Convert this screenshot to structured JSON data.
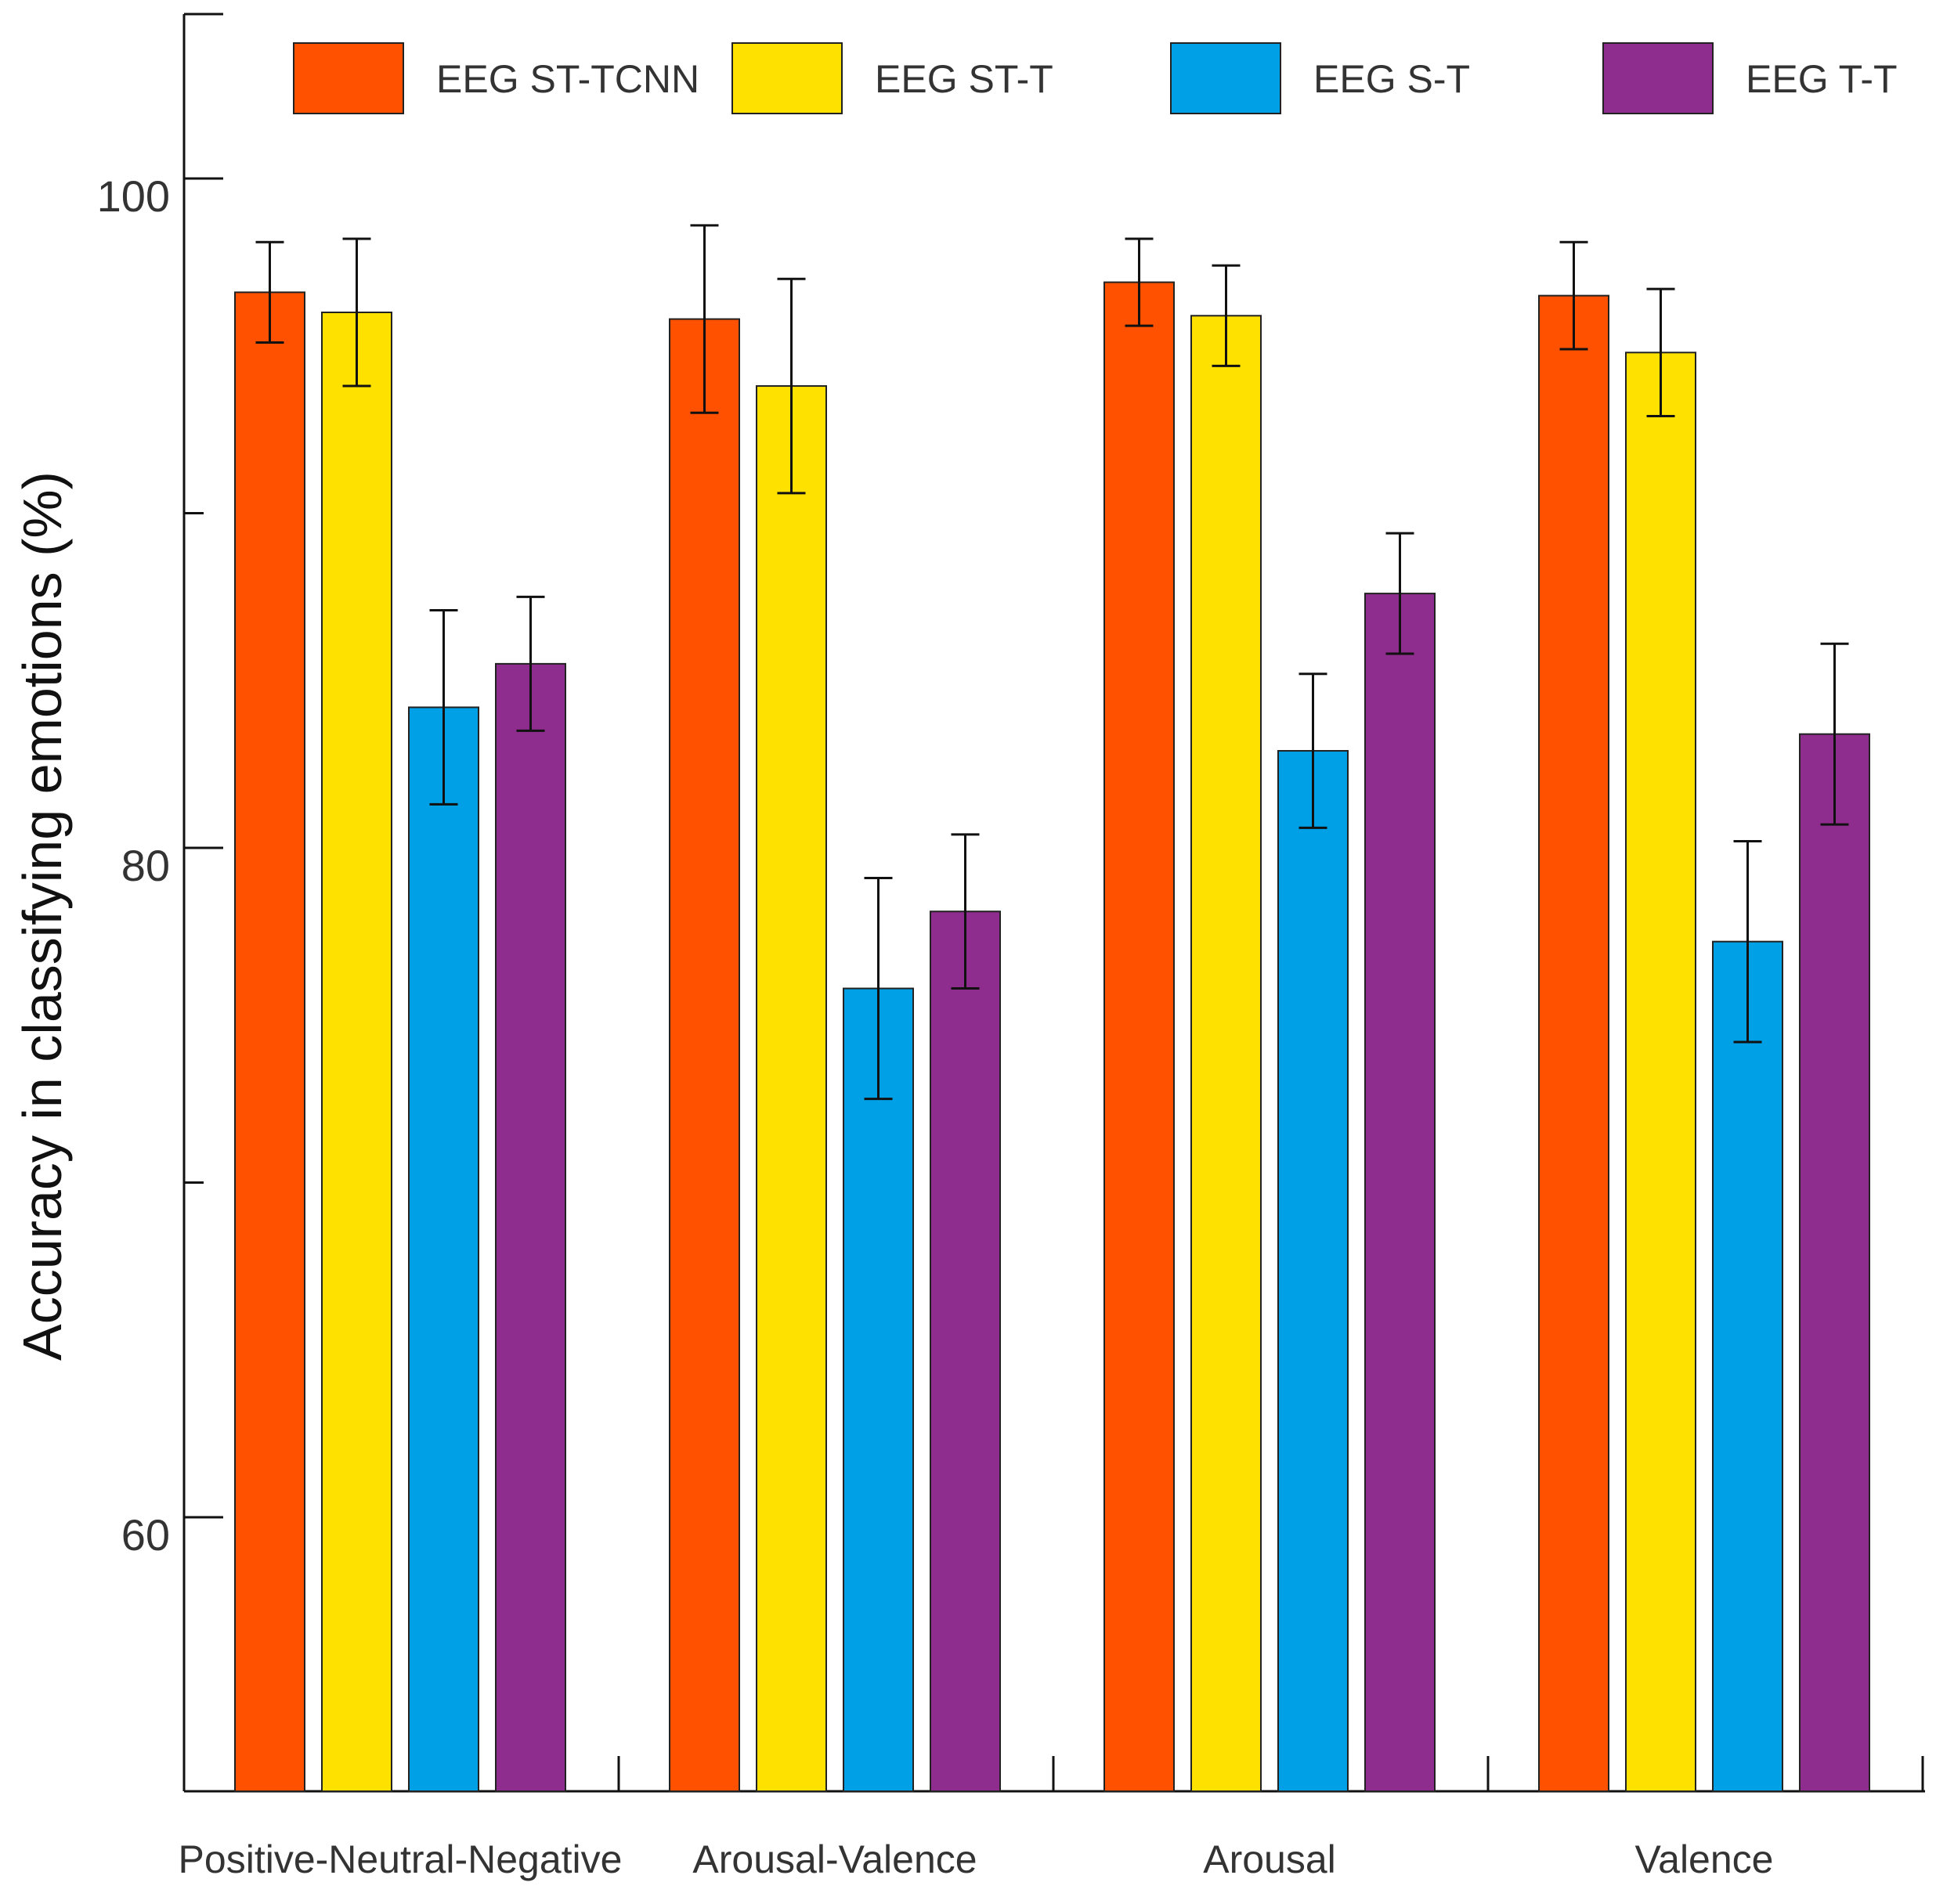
{
  "chart_data": {
    "type": "bar",
    "title": "",
    "xlabel": "",
    "ylabel": "Accuracy in classifying emotions (%)",
    "ylim": [
      51.8,
      105
    ],
    "yticks": [
      60,
      80,
      100
    ],
    "minor_yticks": [
      70,
      90
    ],
    "categories": [
      "Positive-Neutral-Negative",
      "Arousal-Valence",
      "Arousal",
      "Valence"
    ],
    "series": [
      {
        "name": "EEG ST-TCNN",
        "color": "#FF5100",
        "values": [
          96.6,
          95.8,
          96.9,
          96.5
        ],
        "errors": [
          1.5,
          2.8,
          1.3,
          1.6
        ]
      },
      {
        "name": "EEG ST-T",
        "color": "#FFE100",
        "values": [
          96.0,
          93.8,
          95.9,
          94.8
        ],
        "errors": [
          2.2,
          3.2,
          1.5,
          1.9
        ]
      },
      {
        "name": "EEG S-T",
        "color": "#00A0E6",
        "values": [
          84.2,
          75.8,
          82.9,
          77.2
        ],
        "errors": [
          2.9,
          3.3,
          2.3,
          3.0
        ]
      },
      {
        "name": "EEG T-T",
        "color": "#8F2D8E",
        "values": [
          85.5,
          78.1,
          87.6,
          83.4
        ],
        "errors": [
          2.0,
          2.3,
          1.8,
          2.7
        ]
      }
    ],
    "legend_position": "top"
  }
}
